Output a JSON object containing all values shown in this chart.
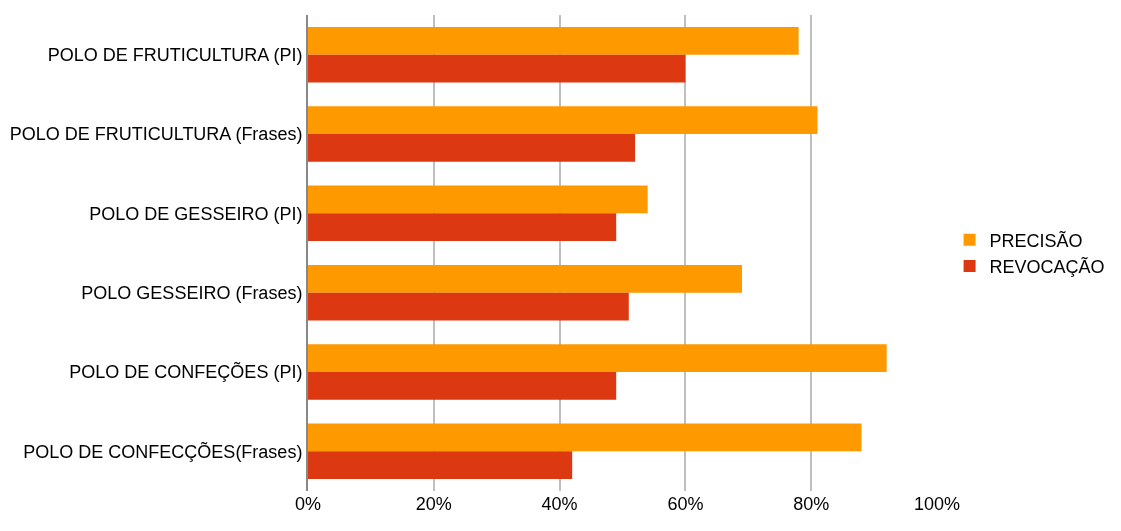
{
  "chart_data": {
    "type": "bar",
    "orientation": "horizontal",
    "categories": [
      "POLO DE FRUTICULTURA (PI)",
      "POLO DE FRUTICULTURA (Frases)",
      "POLO DE GESSEIRO (PI)",
      "POLO GESSEIRO (Frases)",
      "POLO DE CONFEÇÕES (PI)",
      "POLO DE CONFECÇÕES(Frases)"
    ],
    "series": [
      {
        "name": "PRECISÃO",
        "color": "#ff9900",
        "values": [
          78,
          81,
          54,
          69,
          92,
          88
        ]
      },
      {
        "name": "REVOCAÇÃO",
        "color": "#dc3912",
        "values": [
          60,
          52,
          49,
          51,
          49,
          42
        ]
      }
    ],
    "xlim": [
      0,
      100
    ],
    "xticks": [
      {
        "value": 0,
        "label": "0%"
      },
      {
        "value": 20,
        "label": "20%"
      },
      {
        "value": 40,
        "label": "40%"
      },
      {
        "value": 60,
        "label": "60%"
      },
      {
        "value": 80,
        "label": "80%"
      },
      {
        "value": 100,
        "label": "100%"
      }
    ],
    "grid": "x",
    "legend": "right"
  }
}
